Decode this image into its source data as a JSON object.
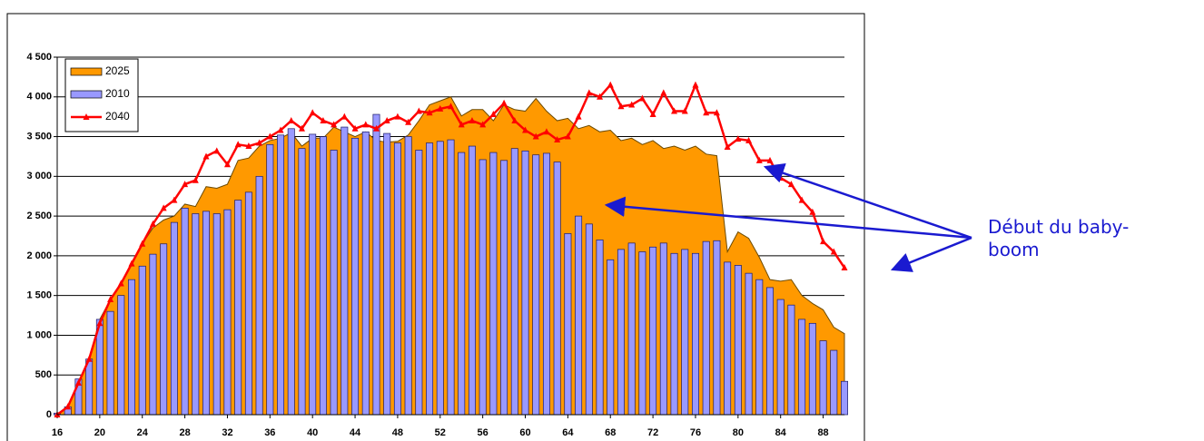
{
  "chart_data": {
    "type": "combo",
    "x": [
      16,
      17,
      18,
      19,
      20,
      21,
      22,
      23,
      24,
      25,
      26,
      27,
      28,
      29,
      30,
      31,
      32,
      33,
      34,
      35,
      36,
      37,
      38,
      39,
      40,
      41,
      42,
      43,
      44,
      45,
      46,
      47,
      48,
      49,
      50,
      51,
      52,
      53,
      54,
      55,
      56,
      57,
      58,
      59,
      60,
      61,
      62,
      63,
      64,
      65,
      66,
      67,
      68,
      69,
      70,
      71,
      72,
      73,
      74,
      75,
      76,
      77,
      78,
      79,
      80,
      81,
      82,
      83,
      84,
      85,
      86,
      87,
      88,
      89,
      90
    ],
    "xlim": [
      16,
      90
    ],
    "xticks": [
      16,
      20,
      24,
      28,
      32,
      36,
      40,
      44,
      48,
      52,
      56,
      60,
      64,
      68,
      72,
      76,
      80,
      84,
      88
    ],
    "ylim": [
      0,
      4500
    ],
    "yticks": [
      0,
      500,
      {
        "value": 1000,
        "label": "1 000"
      },
      {
        "value": 1500,
        "label": "1 500"
      },
      {
        "value": 2000,
        "label": "2 000"
      },
      {
        "value": 2500,
        "label": "2 500"
      },
      {
        "value": 3000,
        "label": "3 000"
      },
      {
        "value": 3500,
        "label": "3 500"
      },
      {
        "value": 4000,
        "label": "4 000"
      },
      {
        "value": 4500,
        "label": "4 500"
      }
    ],
    "grid": true,
    "legend": "top-left",
    "series": [
      {
        "name": "2025",
        "type": "area",
        "color": "#ff9900",
        "values": [
          0,
          100,
          400,
          700,
          1200,
          1450,
          1650,
          1900,
          2150,
          2350,
          2450,
          2500,
          2650,
          2620,
          2870,
          2850,
          2900,
          3200,
          3230,
          3380,
          3450,
          3480,
          3550,
          3380,
          3480,
          3480,
          3620,
          3560,
          3500,
          3560,
          3450,
          3430,
          3440,
          3520,
          3700,
          3900,
          3950,
          4000,
          3760,
          3840,
          3840,
          3700,
          3900,
          3840,
          3820,
          3980,
          3820,
          3700,
          3730,
          3600,
          3640,
          3560,
          3580,
          3450,
          3480,
          3400,
          3450,
          3350,
          3380,
          3330,
          3380,
          3280,
          3260,
          2050,
          2300,
          2220,
          1980,
          1700,
          1680,
          1700,
          1500,
          1400,
          1320,
          1100,
          1020
        ]
      },
      {
        "name": "2010",
        "type": "bar",
        "color": "#9999ff",
        "values": [
          20,
          100,
          450,
          700,
          1200,
          1300,
          1500,
          1700,
          1870,
          2020,
          2150,
          2420,
          2600,
          2530,
          2560,
          2530,
          2580,
          2700,
          2800,
          3000,
          3400,
          3520,
          3600,
          3350,
          3530,
          3500,
          3330,
          3620,
          3480,
          3560,
          3780,
          3540,
          3420,
          3500,
          3330,
          3420,
          3440,
          3460,
          3300,
          3380,
          3210,
          3300,
          3200,
          3350,
          3320,
          3270,
          3290,
          3180,
          2280,
          2500,
          2400,
          2200,
          1950,
          2080,
          2160,
          2050,
          2110,
          2160,
          2030,
          2080,
          2030,
          2180,
          2190,
          1920,
          1880,
          1780,
          1700,
          1600,
          1450,
          1380,
          1200,
          1150,
          930,
          810,
          420
        ]
      },
      {
        "name": "2040",
        "type": "line",
        "color": "#ff0000",
        "values": [
          0,
          100,
          400,
          700,
          1150,
          1450,
          1650,
          1900,
          2150,
          2400,
          2600,
          2700,
          2900,
          2950,
          3250,
          3320,
          3150,
          3400,
          3380,
          3420,
          3500,
          3580,
          3700,
          3600,
          3800,
          3700,
          3650,
          3750,
          3600,
          3650,
          3600,
          3700,
          3750,
          3680,
          3820,
          3800,
          3850,
          3880,
          3650,
          3700,
          3650,
          3780,
          3920,
          3700,
          3580,
          3500,
          3560,
          3460,
          3500,
          3750,
          4050,
          4000,
          4150,
          3880,
          3900,
          3980,
          3780,
          4050,
          3820,
          3820,
          4150,
          3800,
          3800,
          3370,
          3470,
          3450,
          3200,
          3200,
          2980,
          2900,
          2700,
          2550,
          2180,
          2050,
          1850
        ]
      }
    ],
    "annotation": "Début du baby-boom"
  }
}
